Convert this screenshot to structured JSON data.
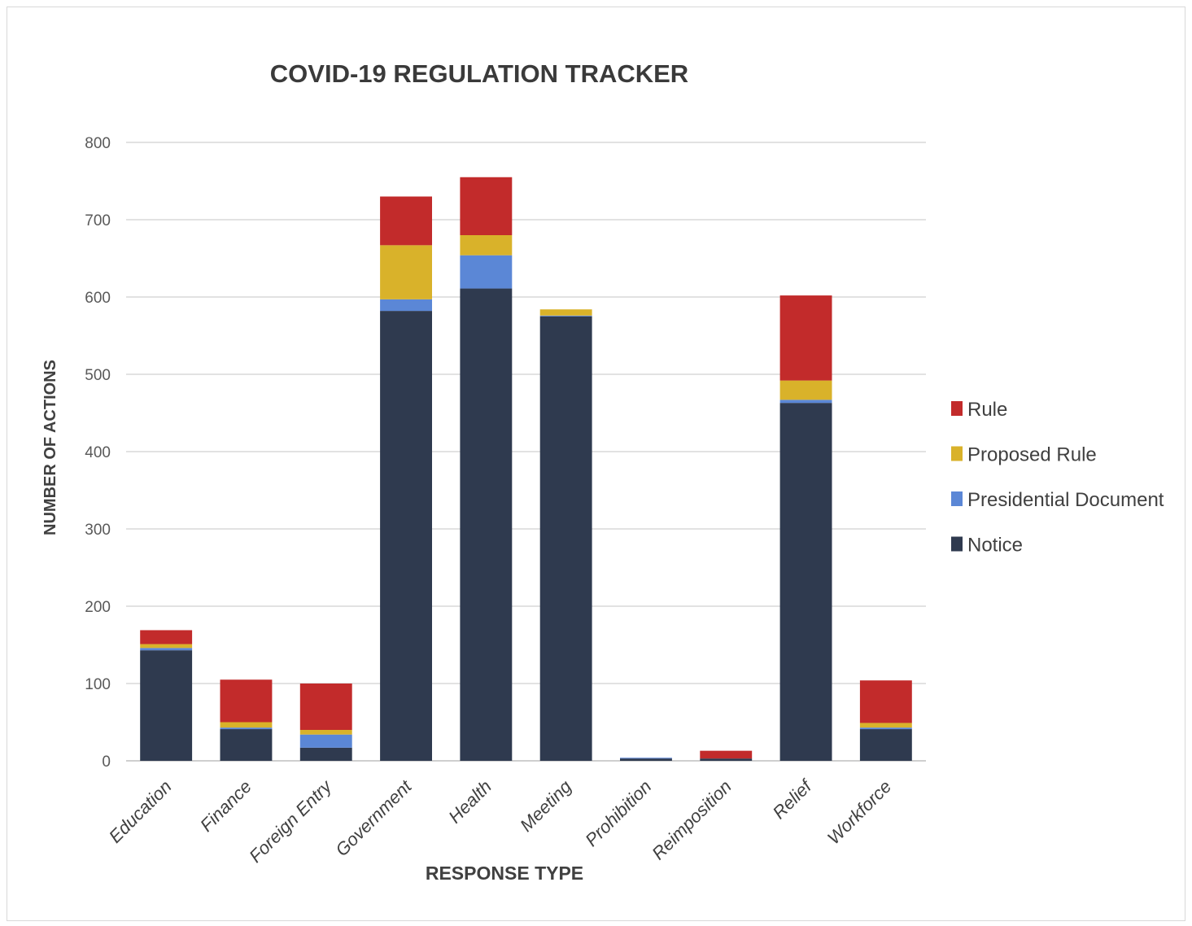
{
  "chart_data": {
    "type": "bar",
    "stacked": true,
    "title": "COVID-19 REGULATION TRACKER",
    "xlabel": "RESPONSE TYPE",
    "ylabel": "NUMBER OF ACTIONS",
    "ylim": [
      0,
      800
    ],
    "yticks": [
      0,
      100,
      200,
      300,
      400,
      500,
      600,
      700,
      800
    ],
    "grid": true,
    "legend_position": "right",
    "categories": [
      "Education",
      "Finance",
      "Foreign Entry",
      "Government",
      "Health",
      "Meeting",
      "Prohibition",
      "Reimposition",
      "Relief",
      "Workforce"
    ],
    "series": [
      {
        "name": "Notice",
        "color": "#2f3a4f",
        "values": [
          143,
          41,
          17,
          582,
          611,
          575,
          3,
          3,
          463,
          41
        ]
      },
      {
        "name": "Presidential Document",
        "color": "#5b87d6",
        "values": [
          3,
          2,
          17,
          15,
          43,
          1,
          1,
          0,
          4,
          2
        ]
      },
      {
        "name": "Proposed Rule",
        "color": "#d9b22a",
        "values": [
          5,
          7,
          6,
          70,
          26,
          8,
          0,
          0,
          25,
          6
        ]
      },
      {
        "name": "Rule",
        "color": "#c22b2b",
        "values": [
          18,
          55,
          60,
          63,
          75,
          0,
          0,
          10,
          110,
          55
        ]
      }
    ],
    "legend_order": [
      "Rule",
      "Proposed Rule",
      "Presidential Document",
      "Notice"
    ]
  }
}
